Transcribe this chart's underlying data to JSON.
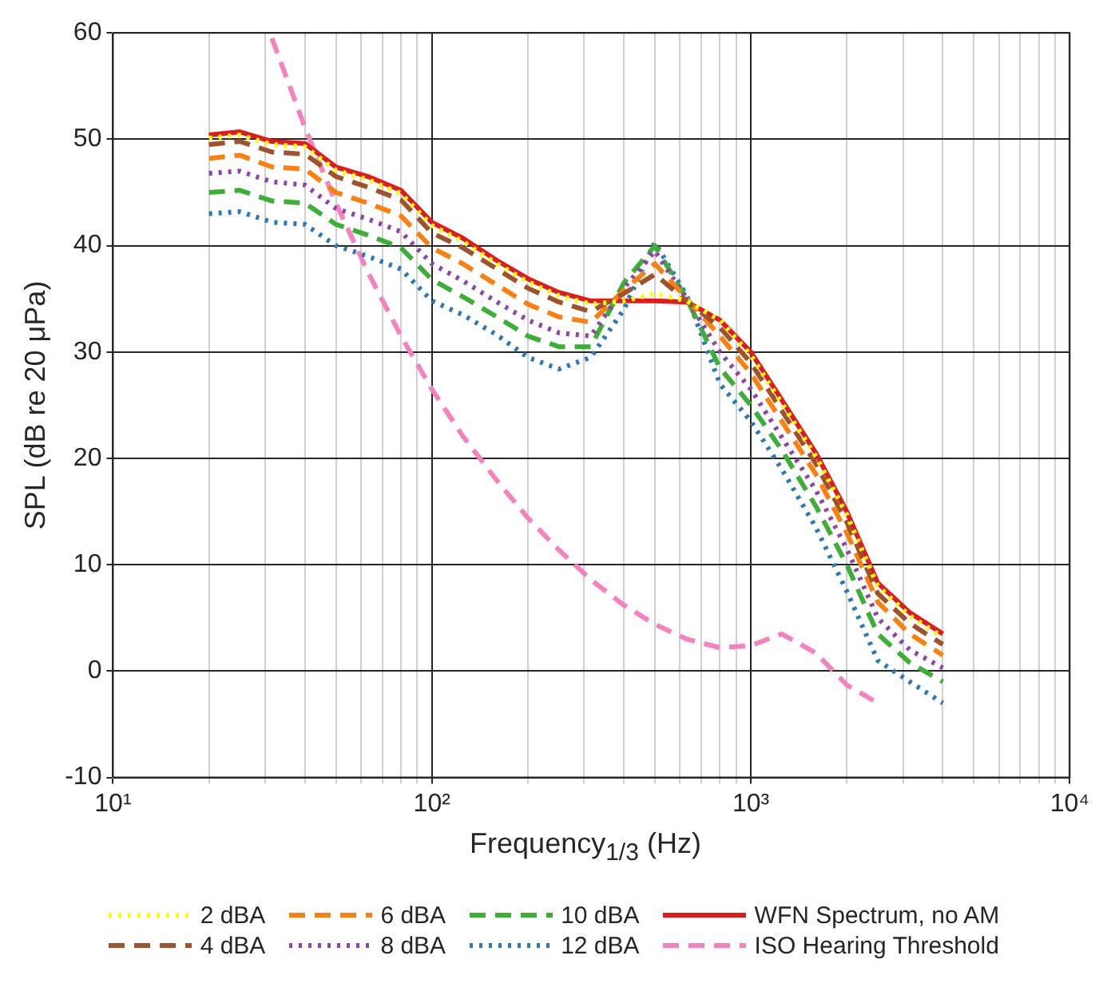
{
  "chart_data": {
    "type": "line",
    "xlabel": "Frequency$_{1/3}$ (Hz)",
    "ylabel": "SPL (dB re 20 μPa)",
    "x": [
      20,
      25,
      31.5,
      40,
      50,
      63,
      80,
      100,
      125,
      160,
      200,
      250,
      315,
      400,
      500,
      630,
      800,
      1000,
      1250,
      1600,
      2000,
      2500,
      3150,
      4000
    ],
    "log": "x",
    "xlim": [
      10,
      10000
    ],
    "ylim": [
      -10,
      60
    ],
    "xticks": [
      {
        "value": 10,
        "label": "10¹"
      },
      {
        "value": 20,
        "label": null
      },
      {
        "value": 30,
        "label": null
      },
      {
        "value": 40,
        "label": null
      },
      {
        "value": 50,
        "label": null
      },
      {
        "value": 60,
        "label": null
      },
      {
        "value": 70,
        "label": null
      },
      {
        "value": 80,
        "label": null
      },
      {
        "value": 90,
        "label": null
      },
      {
        "value": 100,
        "label": "10²"
      },
      {
        "value": 200,
        "label": null
      },
      {
        "value": 300,
        "label": null
      },
      {
        "value": 400,
        "label": null
      },
      {
        "value": 500,
        "label": null
      },
      {
        "value": 600,
        "label": null
      },
      {
        "value": 700,
        "label": null
      },
      {
        "value": 800,
        "label": null
      },
      {
        "value": 900,
        "label": null
      },
      {
        "value": 1000,
        "label": "10³"
      },
      {
        "value": 2000,
        "label": null
      },
      {
        "value": 3000,
        "label": null
      },
      {
        "value": 4000,
        "label": null
      },
      {
        "value": 5000,
        "label": null
      },
      {
        "value": 6000,
        "label": null
      },
      {
        "value": 7000,
        "label": null
      },
      {
        "value": 8000,
        "label": null
      },
      {
        "value": 9000,
        "label": null
      },
      {
        "value": 10000,
        "label": "10⁴"
      }
    ],
    "yticks": [
      -10,
      0,
      10,
      20,
      30,
      40,
      50,
      60
    ],
    "grid": true,
    "legend": "bottom",
    "marker": "none",
    "series": [
      {
        "name": "2 dBA",
        "color": "#ffff00",
        "line_style": "dotted",
        "values": [
          50.1,
          50.4,
          49.5,
          49.3,
          47.1,
          46.2,
          44.9,
          41.9,
          40.4,
          38.3,
          36.6,
          35.3,
          34.5,
          34.8,
          35.5,
          34.8,
          33,
          29.7,
          25.2,
          20.2,
          14.7,
          8,
          5.2,
          3.2
        ]
      },
      {
        "name": "4 dBA",
        "color": "#a0522d",
        "line_style": "dashed",
        "values": [
          49.5,
          49.8,
          48.8,
          48.6,
          46.5,
          45.5,
          44.3,
          41.2,
          39.8,
          37.8,
          36,
          34.7,
          33.8,
          35.5,
          37.3,
          34.8,
          32.3,
          29,
          24.5,
          19.5,
          14,
          7.3,
          4.5,
          2.5
        ]
      },
      {
        "name": "6 dBA",
        "color": "#ff7f0e",
        "line_style": "dashed",
        "values": [
          48.2,
          48.5,
          47.4,
          47.2,
          45,
          44,
          42.8,
          39.8,
          38.3,
          36.3,
          34.5,
          33.3,
          32.8,
          35.8,
          38.3,
          35,
          31.5,
          28,
          23.5,
          18.5,
          13,
          6.5,
          3.5,
          1.5
        ]
      },
      {
        "name": "8 dBA",
        "color": "#8e44ad",
        "line_style": "dotted",
        "values": [
          46.8,
          47,
          46,
          45.7,
          43.5,
          42.5,
          41.3,
          38.3,
          36.7,
          34.7,
          33,
          31.8,
          31.5,
          36,
          39.5,
          35,
          30,
          26.5,
          22,
          17,
          11.5,
          5,
          2,
          0.3
        ]
      },
      {
        "name": "10 dBA",
        "color": "#3cb034",
        "line_style": "dashed",
        "values": [
          45,
          45.2,
          44.2,
          44,
          42,
          41,
          39.8,
          36.8,
          35.2,
          33.3,
          31.5,
          30.5,
          30.5,
          36.5,
          40,
          35,
          28.5,
          25,
          20.8,
          15.5,
          10,
          3.5,
          0.8,
          -1
        ]
      },
      {
        "name": "12 dBA",
        "color": "#2a7ab9",
        "line_style": "dotted",
        "values": [
          43,
          43.2,
          42.2,
          42,
          40,
          39,
          37.8,
          34.8,
          33.5,
          31.6,
          29.5,
          28.4,
          29.5,
          34,
          40.3,
          35.3,
          27,
          23.5,
          19,
          13.5,
          7.5,
          1,
          -1,
          -3
        ]
      },
      {
        "name": "WFN Spectrum, no AM",
        "color": "#e31a1c",
        "line_style": "solid",
        "values": [
          50.4,
          50.7,
          49.8,
          49.6,
          47.4,
          46.5,
          45.2,
          42.2,
          40.7,
          38.6,
          36.9,
          35.6,
          34.8,
          34.8,
          34.8,
          34.7,
          33,
          30,
          25.5,
          20.5,
          15,
          8.3,
          5.5,
          3.5
        ]
      },
      {
        "name": "ISO Hearing Threshold",
        "color": "#f781bf",
        "line_style": "dashed",
        "values": [
          null,
          null,
          59.5,
          51.1,
          44,
          37.5,
          31.5,
          26.5,
          22.1,
          17.9,
          14.4,
          11.4,
          8.6,
          6.2,
          4.4,
          3,
          2.2,
          2.4,
          3.5,
          1.7,
          -1.3,
          -3,
          null,
          null
        ]
      }
    ]
  }
}
